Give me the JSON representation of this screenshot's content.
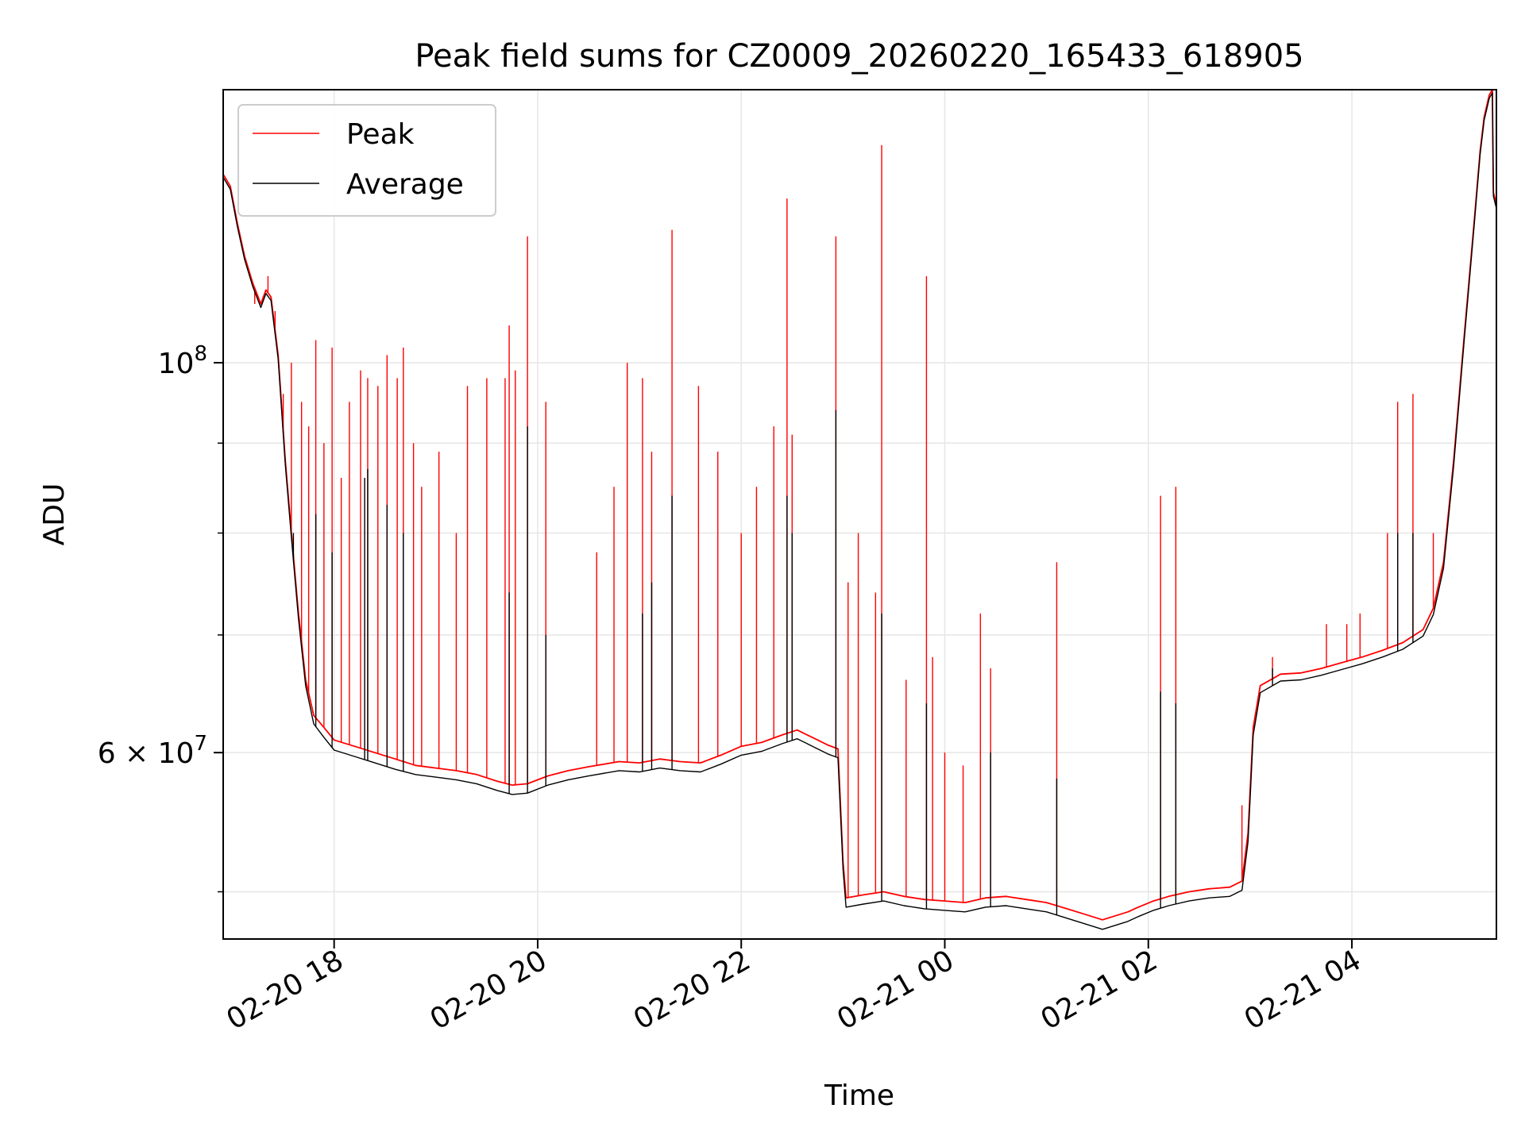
{
  "chart_data": {
    "type": "line",
    "title": "Peak field sums for CZ0009_20260220_165433_618905",
    "xlabel": "Time",
    "ylabel": "ADU",
    "x_unit": "hours since 02-20 00:00",
    "xlim": [
      16.91,
      29.42
    ],
    "ylim": [
      47000000,
      143000000
    ],
    "yscale": "log",
    "grid": true,
    "legend_position": "upper left",
    "x_ticks": [
      {
        "value": 18,
        "label": "02-20 18"
      },
      {
        "value": 20,
        "label": "02-20 20"
      },
      {
        "value": 22,
        "label": "02-20 22"
      },
      {
        "value": 24,
        "label": "02-21 00"
      },
      {
        "value": 26,
        "label": "02-21 02"
      },
      {
        "value": 28,
        "label": "02-21 04"
      }
    ],
    "y_major_ticks": [
      {
        "value": 60000000,
        "base": "6 × 10",
        "exp": "7"
      },
      {
        "value": 100000000,
        "base": "10",
        "exp": "8"
      }
    ],
    "y_minor_ticks": [
      50000000,
      60000000,
      70000000,
      80000000,
      90000000,
      100000000
    ],
    "series": [
      {
        "name": "Peak",
        "color": "#ff0000",
        "points": [
          [
            16.91,
            128000000
          ],
          [
            16.98,
            126000000
          ],
          [
            17.05,
            120000000
          ],
          [
            17.12,
            115000000
          ],
          [
            17.2,
            111000000
          ],
          [
            17.28,
            108000000
          ],
          [
            17.33,
            110000000
          ],
          [
            17.38,
            109000000
          ],
          [
            17.45,
            101000000
          ],
          [
            17.52,
            88000000
          ],
          [
            17.58,
            80000000
          ],
          [
            17.65,
            72000000
          ],
          [
            17.72,
            66000000
          ],
          [
            17.8,
            63000000
          ],
          [
            17.9,
            62000000
          ],
          [
            18.0,
            61000000
          ],
          [
            18.2,
            60500000
          ],
          [
            18.4,
            60000000
          ],
          [
            18.6,
            59500000
          ],
          [
            18.8,
            59000000
          ],
          [
            19.0,
            58800000
          ],
          [
            19.2,
            58600000
          ],
          [
            19.4,
            58300000
          ],
          [
            19.6,
            57800000
          ],
          [
            19.75,
            57500000
          ],
          [
            19.9,
            57600000
          ],
          [
            20.1,
            58200000
          ],
          [
            20.3,
            58600000
          ],
          [
            20.5,
            58900000
          ],
          [
            20.8,
            59300000
          ],
          [
            21.0,
            59200000
          ],
          [
            21.2,
            59500000
          ],
          [
            21.4,
            59300000
          ],
          [
            21.6,
            59200000
          ],
          [
            21.8,
            59800000
          ],
          [
            22.0,
            60500000
          ],
          [
            22.2,
            60800000
          ],
          [
            22.4,
            61400000
          ],
          [
            22.55,
            61800000
          ],
          [
            22.7,
            61200000
          ],
          [
            22.85,
            60600000
          ],
          [
            22.95,
            60300000
          ],
          [
            23.0,
            52000000
          ],
          [
            23.03,
            49600000
          ],
          [
            23.2,
            49800000
          ],
          [
            23.4,
            50000000
          ],
          [
            23.6,
            49700000
          ],
          [
            23.8,
            49500000
          ],
          [
            24.0,
            49400000
          ],
          [
            24.2,
            49300000
          ],
          [
            24.4,
            49600000
          ],
          [
            24.6,
            49700000
          ],
          [
            24.8,
            49500000
          ],
          [
            25.0,
            49300000
          ],
          [
            25.2,
            48900000
          ],
          [
            25.4,
            48500000
          ],
          [
            25.55,
            48200000
          ],
          [
            25.65,
            48400000
          ],
          [
            25.8,
            48700000
          ],
          [
            25.9,
            49000000
          ],
          [
            26.05,
            49400000
          ],
          [
            26.2,
            49700000
          ],
          [
            26.4,
            50000000
          ],
          [
            26.6,
            50200000
          ],
          [
            26.8,
            50300000
          ],
          [
            26.92,
            50700000
          ],
          [
            26.98,
            54000000
          ],
          [
            27.03,
            62000000
          ],
          [
            27.1,
            65500000
          ],
          [
            27.3,
            66500000
          ],
          [
            27.5,
            66600000
          ],
          [
            27.7,
            67000000
          ],
          [
            27.9,
            67500000
          ],
          [
            28.1,
            68000000
          ],
          [
            28.3,
            68600000
          ],
          [
            28.5,
            69300000
          ],
          [
            28.7,
            70500000
          ],
          [
            28.8,
            72500000
          ],
          [
            28.9,
            77000000
          ],
          [
            29.0,
            88000000
          ],
          [
            29.1,
            103000000
          ],
          [
            29.2,
            120000000
          ],
          [
            29.26,
            132000000
          ],
          [
            29.3,
            138000000
          ],
          [
            29.35,
            142000000
          ],
          [
            29.38,
            143000000
          ],
          [
            29.39,
            125000000
          ],
          [
            29.42,
            123000000
          ]
        ],
        "spikes": [
          [
            17.22,
            108000000
          ],
          [
            17.35,
            112000000
          ],
          [
            17.42,
            107000000
          ],
          [
            17.5,
            96000000
          ],
          [
            17.58,
            100000000
          ],
          [
            17.68,
            95000000
          ],
          [
            17.75,
            92000000
          ],
          [
            17.82,
            103000000
          ],
          [
            17.9,
            90000000
          ],
          [
            17.98,
            102000000
          ],
          [
            18.07,
            86000000
          ],
          [
            18.15,
            95000000
          ],
          [
            18.26,
            99000000
          ],
          [
            18.33,
            98000000
          ],
          [
            18.43,
            97000000
          ],
          [
            18.52,
            101000000
          ],
          [
            18.62,
            98000000
          ],
          [
            18.68,
            102000000
          ],
          [
            18.78,
            90000000
          ],
          [
            18.86,
            85000000
          ],
          [
            19.03,
            89000000
          ],
          [
            19.2,
            80000000
          ],
          [
            19.31,
            97000000
          ],
          [
            19.5,
            98000000
          ],
          [
            19.68,
            98000000
          ],
          [
            19.72,
            105000000
          ],
          [
            19.78,
            99000000
          ],
          [
            19.9,
            118000000
          ],
          [
            20.08,
            95000000
          ],
          [
            20.58,
            78000000
          ],
          [
            20.75,
            85000000
          ],
          [
            20.88,
            100000000
          ],
          [
            21.03,
            98000000
          ],
          [
            21.12,
            89000000
          ],
          [
            21.32,
            119000000
          ],
          [
            21.58,
            97000000
          ],
          [
            21.77,
            89000000
          ],
          [
            22.0,
            80000000
          ],
          [
            22.15,
            85000000
          ],
          [
            22.32,
            92000000
          ],
          [
            22.45,
            124000000
          ],
          [
            22.5,
            91000000
          ],
          [
            22.93,
            118000000
          ],
          [
            23.05,
            75000000
          ],
          [
            23.15,
            80000000
          ],
          [
            23.32,
            74000000
          ],
          [
            23.38,
            133000000
          ],
          [
            23.62,
            66000000
          ],
          [
            23.82,
            112000000
          ],
          [
            23.88,
            68000000
          ],
          [
            24.0,
            60000000
          ],
          [
            24.18,
            59000000
          ],
          [
            24.35,
            72000000
          ],
          [
            24.45,
            67000000
          ],
          [
            25.1,
            77000000
          ],
          [
            26.12,
            84000000
          ],
          [
            26.27,
            85000000
          ],
          [
            26.92,
            56000000
          ],
          [
            27.22,
            68000000
          ],
          [
            27.75,
            71000000
          ],
          [
            27.95,
            71000000
          ],
          [
            28.08,
            72000000
          ],
          [
            28.35,
            80000000
          ],
          [
            28.45,
            95000000
          ],
          [
            28.6,
            96000000
          ],
          [
            28.8,
            80000000
          ]
        ]
      },
      {
        "name": "Average",
        "color": "#000000",
        "points": [
          [
            16.91,
            127500000
          ],
          [
            16.98,
            125500000
          ],
          [
            17.05,
            119500000
          ],
          [
            17.12,
            114500000
          ],
          [
            17.2,
            110500000
          ],
          [
            17.28,
            107500000
          ],
          [
            17.33,
            109500000
          ],
          [
            17.38,
            108500000
          ],
          [
            17.45,
            100500000
          ],
          [
            17.52,
            87500000
          ],
          [
            17.58,
            79500000
          ],
          [
            17.65,
            71500000
          ],
          [
            17.72,
            65500000
          ],
          [
            17.8,
            62300000
          ],
          [
            17.9,
            61200000
          ],
          [
            18.0,
            60200000
          ],
          [
            18.2,
            59700000
          ],
          [
            18.4,
            59200000
          ],
          [
            18.6,
            58700000
          ],
          [
            18.8,
            58300000
          ],
          [
            19.0,
            58100000
          ],
          [
            19.2,
            57900000
          ],
          [
            19.4,
            57600000
          ],
          [
            19.6,
            57100000
          ],
          [
            19.75,
            56800000
          ],
          [
            19.9,
            56900000
          ],
          [
            20.1,
            57500000
          ],
          [
            20.3,
            57900000
          ],
          [
            20.5,
            58200000
          ],
          [
            20.8,
            58600000
          ],
          [
            21.0,
            58500000
          ],
          [
            21.2,
            58800000
          ],
          [
            21.4,
            58600000
          ],
          [
            21.6,
            58500000
          ],
          [
            21.8,
            59100000
          ],
          [
            22.0,
            59800000
          ],
          [
            22.2,
            60100000
          ],
          [
            22.4,
            60700000
          ],
          [
            22.55,
            61100000
          ],
          [
            22.7,
            60500000
          ],
          [
            22.85,
            59900000
          ],
          [
            22.95,
            59600000
          ],
          [
            23.0,
            51500000
          ],
          [
            23.03,
            49000000
          ],
          [
            23.2,
            49200000
          ],
          [
            23.4,
            49400000
          ],
          [
            23.6,
            49100000
          ],
          [
            23.8,
            48900000
          ],
          [
            24.0,
            48800000
          ],
          [
            24.2,
            48700000
          ],
          [
            24.4,
            49000000
          ],
          [
            24.6,
            49100000
          ],
          [
            24.8,
            48900000
          ],
          [
            25.0,
            48700000
          ],
          [
            25.2,
            48300000
          ],
          [
            25.4,
            47900000
          ],
          [
            25.55,
            47600000
          ],
          [
            25.65,
            47800000
          ],
          [
            25.8,
            48100000
          ],
          [
            25.9,
            48400000
          ],
          [
            26.05,
            48800000
          ],
          [
            26.2,
            49100000
          ],
          [
            26.4,
            49400000
          ],
          [
            26.6,
            49600000
          ],
          [
            26.8,
            49700000
          ],
          [
            26.92,
            50100000
          ],
          [
            26.98,
            53400000
          ],
          [
            27.03,
            61400000
          ],
          [
            27.1,
            64900000
          ],
          [
            27.3,
            65900000
          ],
          [
            27.5,
            66000000
          ],
          [
            27.7,
            66400000
          ],
          [
            27.9,
            66900000
          ],
          [
            28.1,
            67400000
          ],
          [
            28.3,
            68000000
          ],
          [
            28.5,
            68700000
          ],
          [
            28.7,
            69900000
          ],
          [
            28.8,
            71900000
          ],
          [
            28.9,
            76400000
          ],
          [
            29.0,
            87400000
          ],
          [
            29.1,
            102400000
          ],
          [
            29.2,
            119400000
          ],
          [
            29.26,
            131400000
          ],
          [
            29.3,
            137400000
          ],
          [
            29.35,
            141400000
          ],
          [
            29.38,
            142400000
          ],
          [
            29.39,
            124400000
          ],
          [
            29.42,
            122400000
          ]
        ],
        "spikes": [
          [
            17.6,
            80000000
          ],
          [
            17.82,
            82000000
          ],
          [
            17.98,
            78000000
          ],
          [
            18.3,
            86000000
          ],
          [
            18.33,
            87000000
          ],
          [
            18.52,
            83000000
          ],
          [
            18.68,
            80000000
          ],
          [
            19.72,
            74000000
          ],
          [
            19.9,
            92000000
          ],
          [
            20.08,
            70000000
          ],
          [
            21.03,
            72000000
          ],
          [
            21.12,
            75000000
          ],
          [
            21.32,
            84000000
          ],
          [
            22.45,
            84000000
          ],
          [
            22.5,
            80000000
          ],
          [
            22.93,
            94000000
          ],
          [
            23.38,
            72000000
          ],
          [
            23.82,
            64000000
          ],
          [
            24.45,
            60000000
          ],
          [
            25.1,
            58000000
          ],
          [
            26.12,
            65000000
          ],
          [
            26.27,
            64000000
          ],
          [
            27.22,
            67000000
          ],
          [
            28.45,
            80000000
          ],
          [
            28.6,
            80000000
          ]
        ]
      }
    ]
  }
}
